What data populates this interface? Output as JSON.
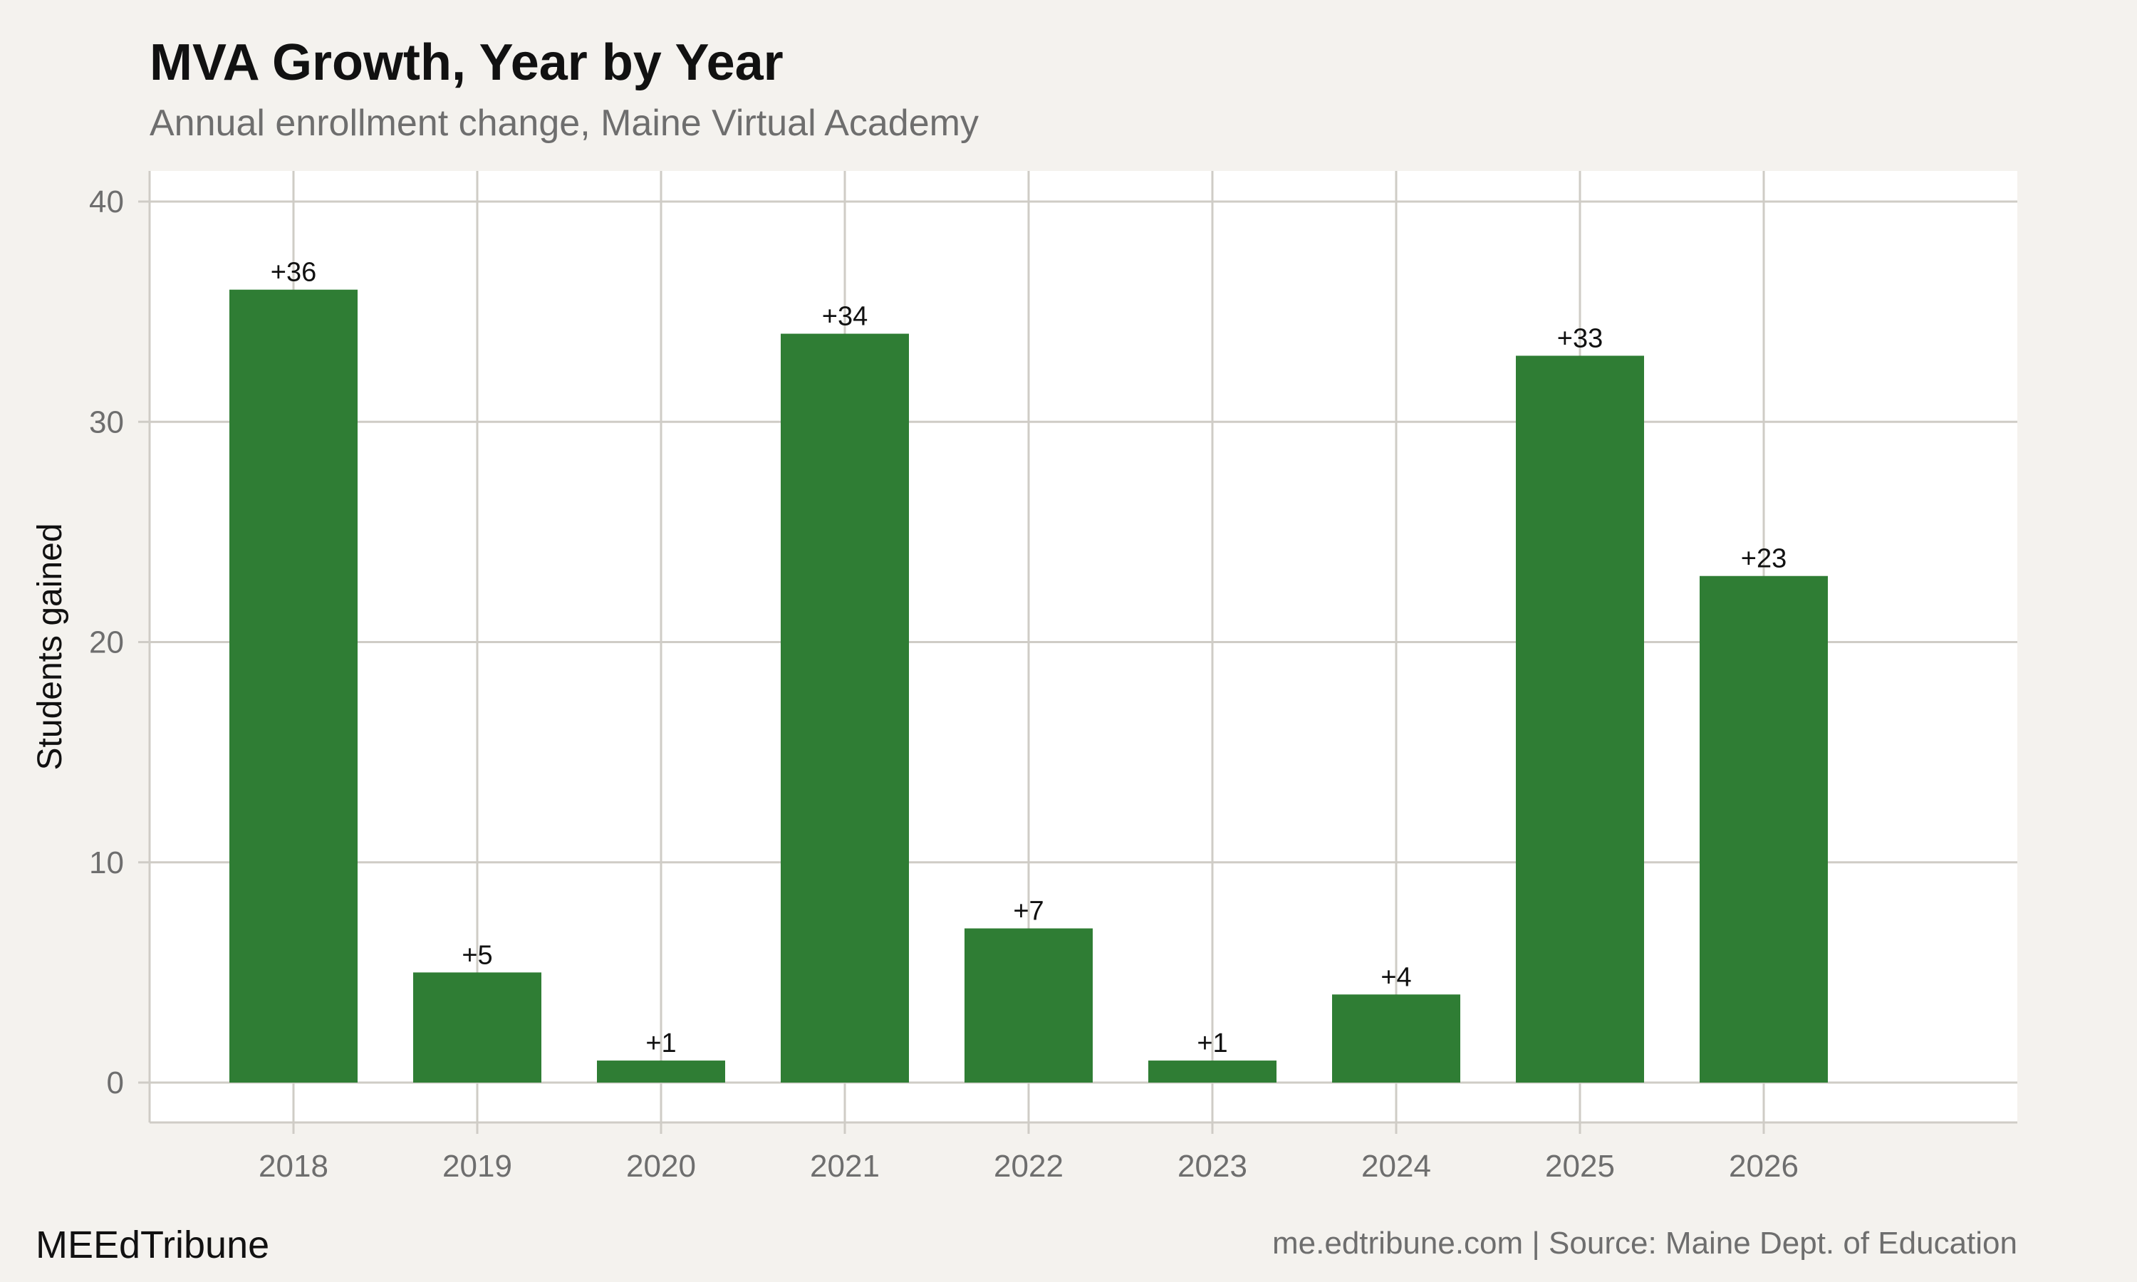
{
  "header": {
    "title": "MVA Growth, Year by Year",
    "subtitle": "Annual enrollment change, Maine Virtual Academy"
  },
  "footer": {
    "brand": "MEEdTribune",
    "source": "me.edtribune.com | Source: Maine Dept. of Education"
  },
  "colors": {
    "background": "#f4f2ee",
    "panel": "#ffffff",
    "grid": "#cfccc6",
    "bar": "#2f7d34"
  },
  "chart_data": {
    "type": "bar",
    "title": "MVA Growth, Year by Year",
    "subtitle": "Annual enrollment change, Maine Virtual Academy",
    "xlabel": "",
    "ylabel": "Students gained",
    "categories": [
      "2018",
      "2019",
      "2020",
      "2021",
      "2022",
      "2023",
      "2024",
      "2025",
      "2026"
    ],
    "values": [
      36,
      5,
      1,
      34,
      7,
      1,
      4,
      33,
      23
    ],
    "value_labels": [
      "+36",
      "+5",
      "+1",
      "+34",
      "+7",
      "+1",
      "+4",
      "+33",
      "+23"
    ],
    "ylim": [
      0,
      40
    ],
    "yticks": [
      0,
      10,
      20,
      30,
      40
    ],
    "grid": true
  }
}
